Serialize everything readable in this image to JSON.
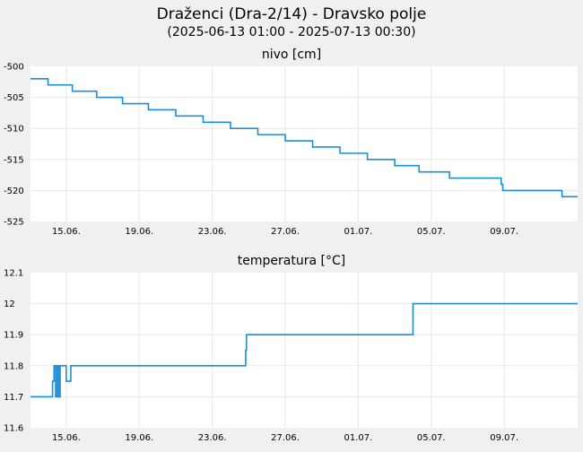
{
  "header": {
    "title": "Draženci (Dra-2/14) - Dravsko polje",
    "subtitle": "(2025-06-13 01:00 - 2025-07-13 00:30)"
  },
  "colors": {
    "background": "#f0f0f0",
    "plot_background": "#ffffff",
    "grid": "#e8e8e8",
    "series": "#1a8fd8"
  },
  "x_axis": {
    "start": "2025-06-13 01:00",
    "end": "2025-07-13 00:30",
    "tick_labels": [
      "15.06.",
      "19.06.",
      "23.06.",
      "27.06.",
      "01.07.",
      "05.07.",
      "09.07."
    ],
    "tick_dates": [
      "2025-06-15",
      "2025-06-19",
      "2025-06-23",
      "2025-06-27",
      "2025-07-01",
      "2025-07-05",
      "2025-07-09"
    ]
  },
  "chart_data": [
    {
      "type": "line",
      "title": "nivo [cm]",
      "xlabel": "",
      "ylabel": "",
      "ylim": [
        -525,
        -500
      ],
      "y_ticks": [
        "-500",
        "-505",
        "-510",
        "-515",
        "-520",
        "-525"
      ],
      "grid": true,
      "series": [
        {
          "x": [
            "2025-06-13 01:00",
            "2025-06-14 00:00",
            "2025-06-14 00:01",
            "2025-06-15 08:00",
            "2025-06-15 08:01",
            "2025-06-16 16:00",
            "2025-06-16 16:01",
            "2025-06-18 02:00",
            "2025-06-18 02:01",
            "2025-06-19 12:00",
            "2025-06-19 12:01",
            "2025-06-21 00:00",
            "2025-06-21 00:01",
            "2025-06-22 12:00",
            "2025-06-22 12:01",
            "2025-06-24 00:00",
            "2025-06-24 00:01",
            "2025-06-25 12:00",
            "2025-06-25 12:01",
            "2025-06-27 00:00",
            "2025-06-27 00:01",
            "2025-06-28 12:00",
            "2025-06-28 12:01",
            "2025-06-30 00:00",
            "2025-06-30 00:01",
            "2025-07-01 12:00",
            "2025-07-01 12:01",
            "2025-07-03 00:00",
            "2025-07-03 00:01",
            "2025-07-04 08:00",
            "2025-07-04 08:01",
            "2025-07-06 00:00",
            "2025-07-06 00:01",
            "2025-07-08 20:00",
            "2025-07-08 20:01",
            "2025-07-08 22:00",
            "2025-07-08 22:01",
            "2025-07-09 00:00",
            "2025-07-09 00:01",
            "2025-07-12 04:00",
            "2025-07-12 04:01",
            "2025-07-13 00:30"
          ],
          "values": [
            -502,
            -502,
            -503,
            -503,
            -504,
            -504,
            -505,
            -505,
            -506,
            -506,
            -507,
            -507,
            -508,
            -508,
            -509,
            -509,
            -510,
            -510,
            -511,
            -511,
            -512,
            -512,
            -513,
            -513,
            -514,
            -514,
            -515,
            -515,
            -516,
            -516,
            -517,
            -517,
            -518,
            -518,
            -519,
            -519,
            -520,
            -520,
            -520,
            -520,
            -521,
            -521
          ]
        }
      ]
    },
    {
      "type": "line",
      "title": "temperatura [°C]",
      "xlabel": "",
      "ylabel": "",
      "ylim": [
        11.6,
        12.1
      ],
      "y_ticks": [
        "12.1",
        "12",
        "11.9",
        "11.8",
        "11.7",
        "11.6"
      ],
      "grid": true,
      "series": [
        {
          "x": [
            "2025-06-13 01:00",
            "2025-06-14 06:00",
            "2025-06-14 06:01",
            "2025-06-14 08:00",
            "2025-06-14 08:01",
            "2025-06-14 10:00",
            "2025-06-14 10:01",
            "2025-06-14 12:00",
            "2025-06-14 12:01",
            "2025-06-14 14:00",
            "2025-06-14 14:01",
            "2025-06-14 16:00",
            "2025-06-14 16:01",
            "2025-06-15 00:00",
            "2025-06-15 00:01",
            "2025-06-15 06:00",
            "2025-06-15 06:01",
            "2025-06-24 20:00",
            "2025-06-24 20:01",
            "2025-06-24 21:00",
            "2025-06-24 21:01",
            "2025-07-04 00:00",
            "2025-07-04 00:01",
            "2025-07-13 00:30"
          ],
          "values": [
            11.7,
            11.7,
            11.75,
            11.75,
            11.8,
            11.8,
            11.7,
            11.7,
            11.8,
            11.8,
            11.7,
            11.7,
            11.8,
            11.8,
            11.75,
            11.75,
            11.8,
            11.8,
            11.85,
            11.85,
            11.9,
            11.9,
            12.0,
            12.0
          ]
        }
      ]
    }
  ]
}
